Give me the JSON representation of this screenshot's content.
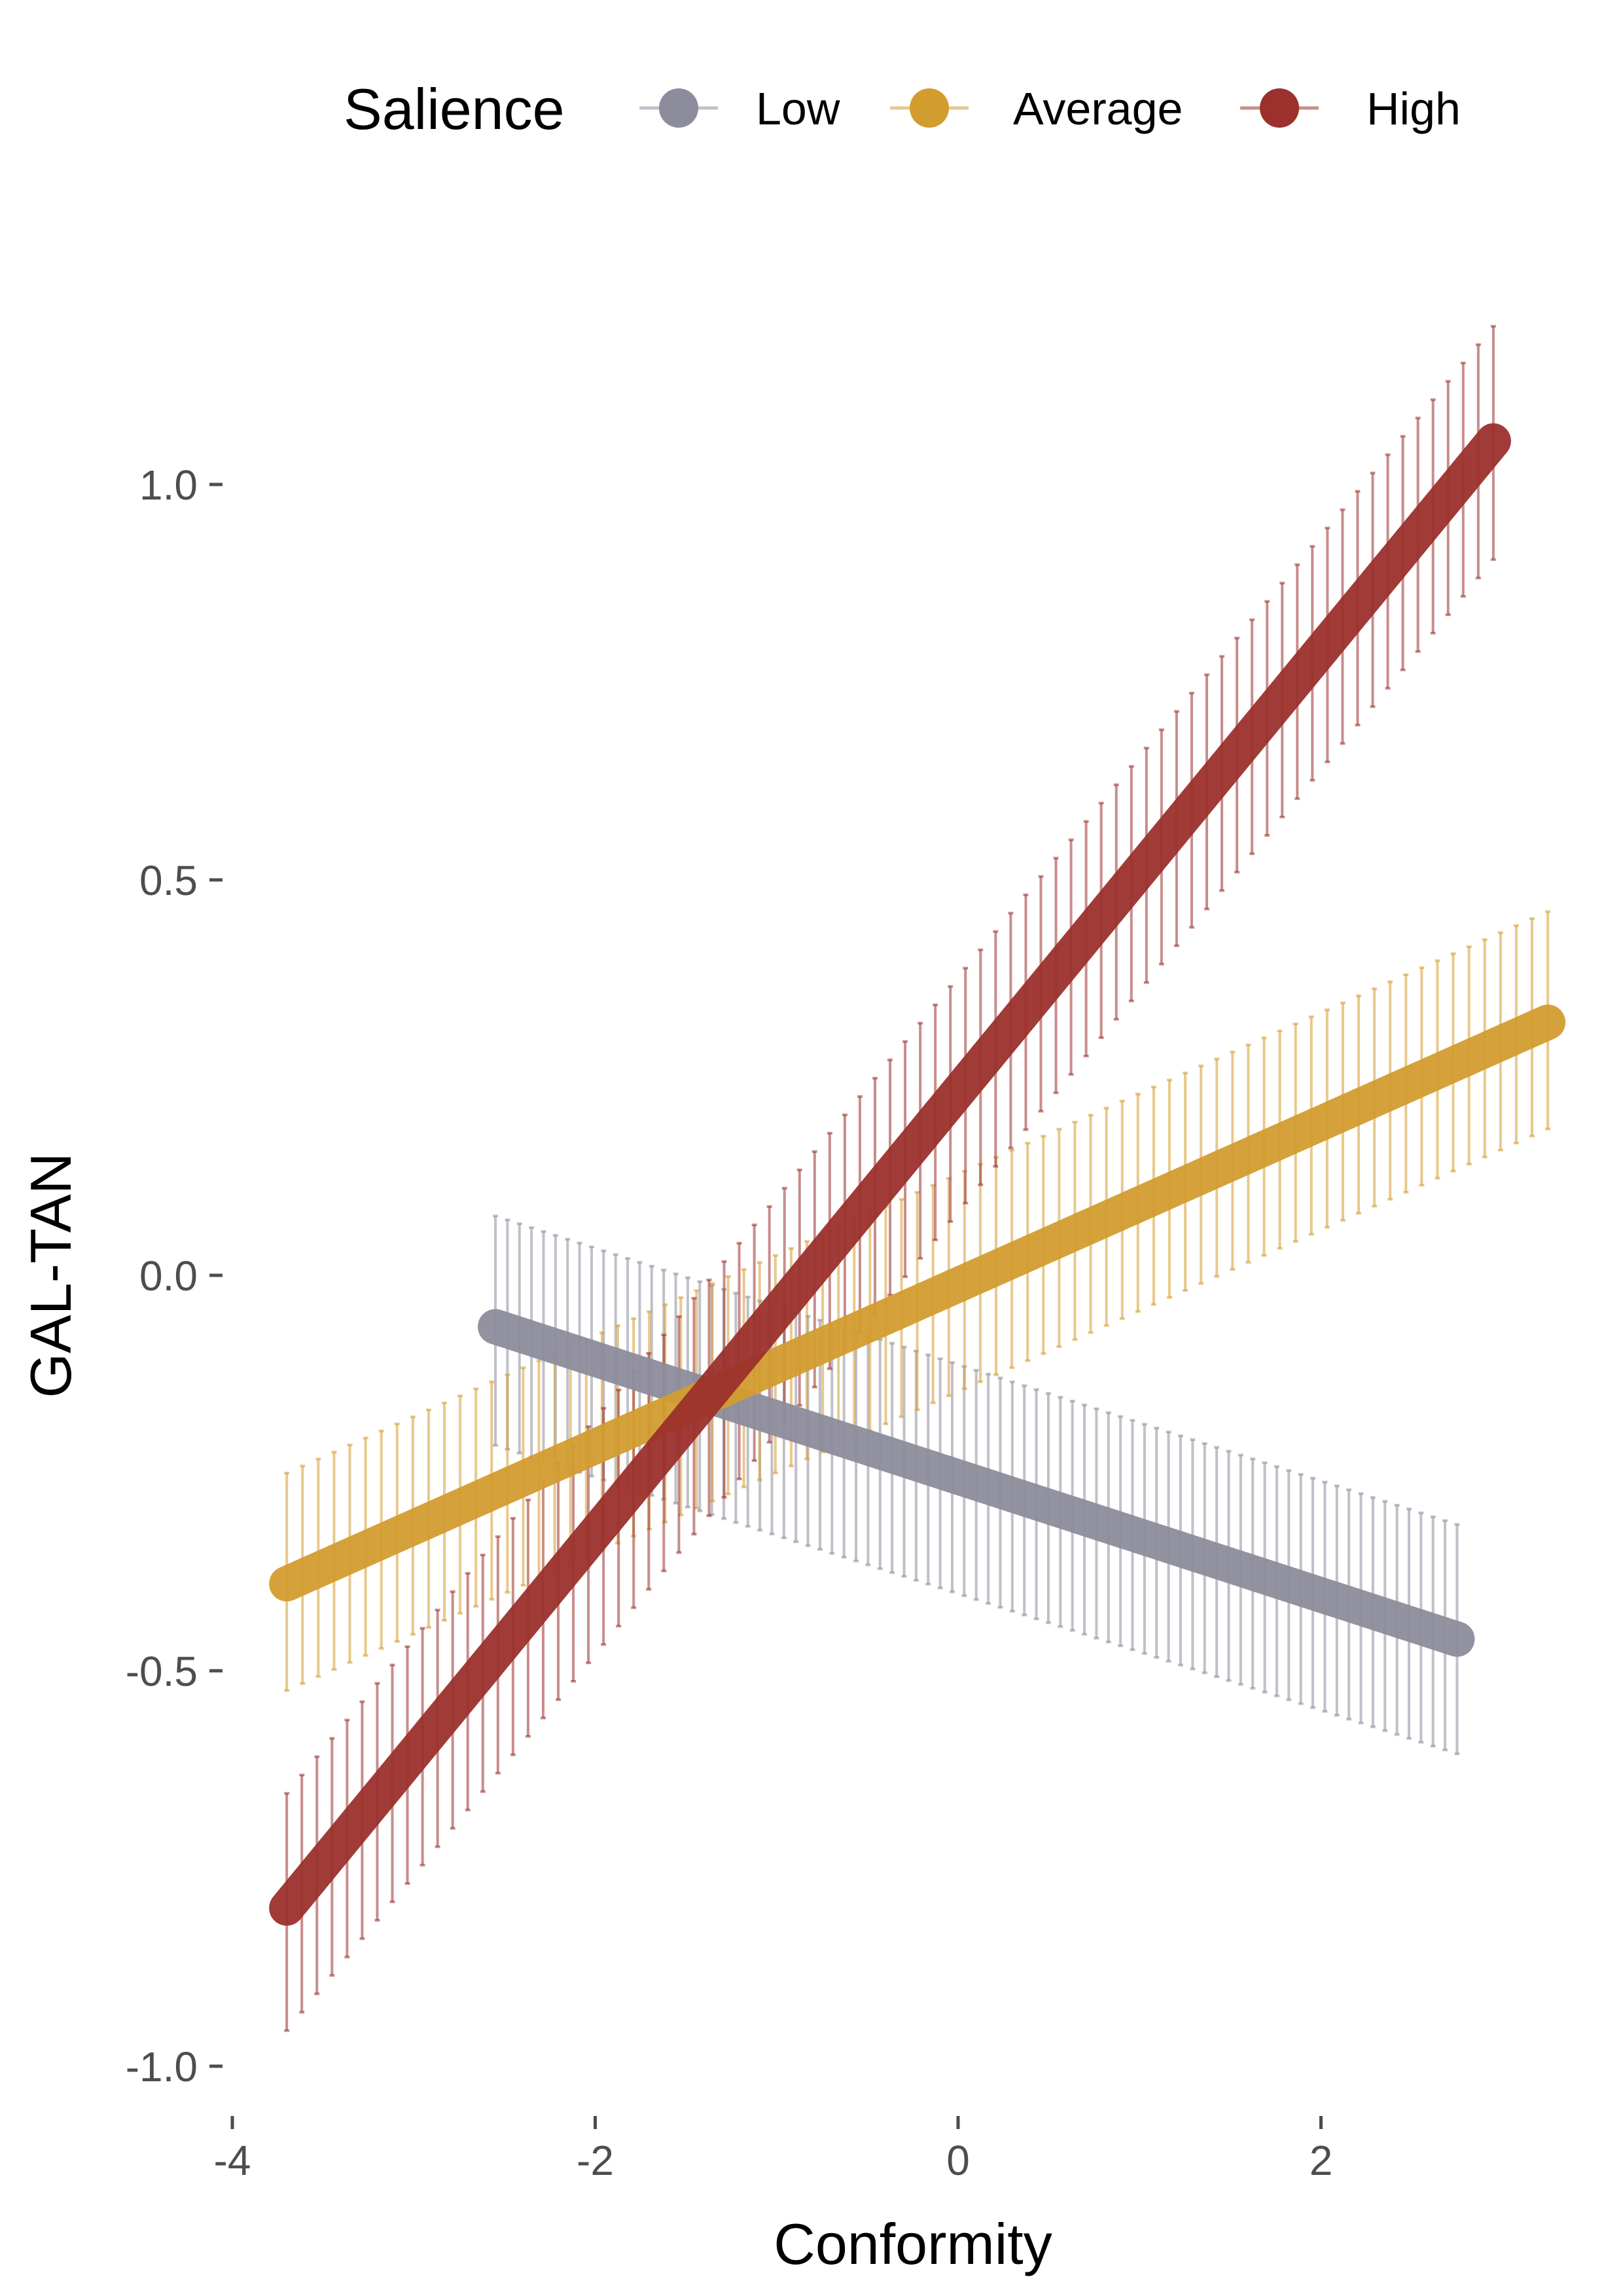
{
  "chart_data": {
    "type": "line",
    "xlabel": "Conformity",
    "ylabel": "GAL-TAN",
    "xlim": [
      -4,
      4
    ],
    "ylim": [
      -1.0,
      1.0
    ],
    "x_ticks": [
      -4,
      -2,
      0,
      2
    ],
    "x_tick_labels": [
      "-4",
      "-2",
      "0",
      "2"
    ],
    "y_ticks": [
      -1.0,
      -0.5,
      0.0,
      0.5,
      1.0
    ],
    "y_tick_labels": [
      "-1.0",
      "-0.5",
      "0.0",
      "0.5",
      "1.0"
    ],
    "grid": false,
    "legend": {
      "title": "Salience",
      "position": "top",
      "entries": [
        "Low",
        "Average",
        "High"
      ]
    },
    "series": [
      {
        "name": "Low",
        "color": "#8c8c9c",
        "x_start": -2.55,
        "x_end": 2.75,
        "y_start": -0.065,
        "y_end": -0.46,
        "lower_start": -0.215,
        "lower_end": -0.605,
        "upper_start": 0.075,
        "upper_end": -0.315
      },
      {
        "name": "Average",
        "color": "#d39c2f",
        "x_start": -3.7,
        "x_end": 3.25,
        "y_start": -0.39,
        "y_end": 0.32,
        "lower_start": -0.525,
        "lower_end": 0.185,
        "upper_start": -0.25,
        "upper_end": 0.46
      },
      {
        "name": "High",
        "color": "#9b302c",
        "x_start": -3.7,
        "x_end": 2.95,
        "y_start": -0.8,
        "y_end": 1.055,
        "lower_start": -0.955,
        "lower_end": 0.905,
        "upper_start": -0.655,
        "upper_end": 1.2
      }
    ]
  }
}
